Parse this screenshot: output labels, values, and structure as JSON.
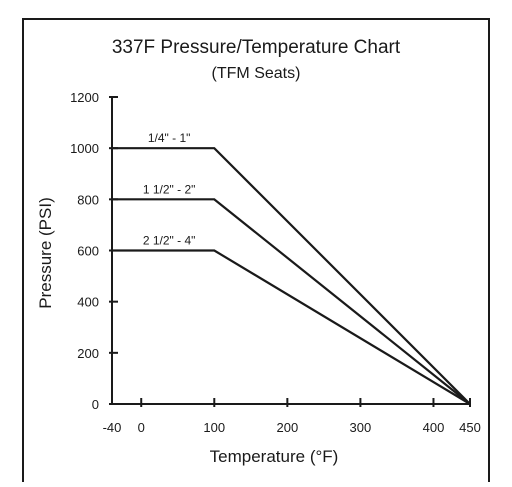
{
  "chart_data": {
    "type": "line",
    "title": "337F Pressure/Temperature Chart",
    "subtitle": "(TFM Seats)",
    "xlabel": "Temperature (°F)",
    "ylabel": "Pressure (PSI)",
    "xlim": [
      -40,
      450
    ],
    "ylim": [
      0,
      1200
    ],
    "xticks": [
      -40,
      0,
      100,
      200,
      300,
      400,
      450
    ],
    "yticks": [
      0,
      200,
      400,
      600,
      800,
      1000,
      1200
    ],
    "grid": false,
    "series": [
      {
        "name": "1/4\" - 1\"",
        "x": [
          -40,
          100,
          450
        ],
        "y": [
          1000,
          1000,
          0
        ]
      },
      {
        "name": "1 1/2\" - 2\"",
        "x": [
          -40,
          100,
          450
        ],
        "y": [
          800,
          800,
          0
        ]
      },
      {
        "name": "2 1/2\" - 4\"",
        "x": [
          -40,
          100,
          450
        ],
        "y": [
          600,
          600,
          0
        ]
      }
    ]
  },
  "style": {
    "line_color": "#1a1a1a",
    "frame_color": "#1a1a1a"
  }
}
